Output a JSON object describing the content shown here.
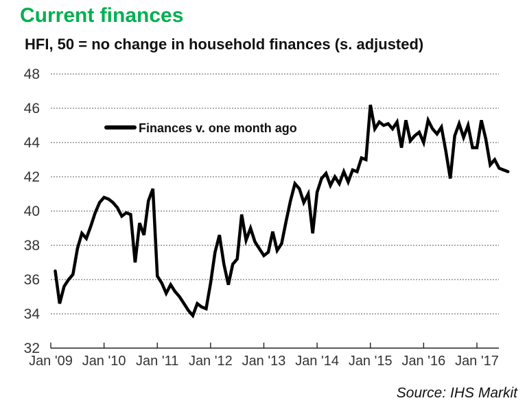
{
  "title": "Current finances",
  "subtitle": "HFI, 50 = no change in household finances (s. adjusted)",
  "source": "Source: IHS Markit",
  "colors": {
    "title_green": "#00B050",
    "line_black": "#000000",
    "axis_text": "#333333"
  },
  "chart_data": {
    "type": "line",
    "title": "Current finances",
    "subtitle": "HFI, 50 = no change in household finances (s. adjusted)",
    "legend_position": "upper-left-inside",
    "grid": "horizontal-dotted",
    "ylim": [
      32,
      48
    ],
    "y_ticks": [
      48,
      46,
      44,
      42,
      40,
      38,
      36,
      34,
      32
    ],
    "x_tick_labels": [
      "Jan '09",
      "Jan '10",
      "Jan '11",
      "Jan '12",
      "Jan '13",
      "Jan '14",
      "Jan '15",
      "Jan '16",
      "Jan '17"
    ],
    "series": [
      {
        "name": "Finances v. one month ago",
        "color": "#000000",
        "frequency": "monthly",
        "start_month": "2009-02",
        "end_month": "2017-08",
        "values": [
          36.5,
          34.6,
          35.6,
          36.0,
          36.3,
          37.8,
          38.7,
          38.4,
          39.1,
          39.9,
          40.5,
          40.8,
          40.7,
          40.5,
          40.2,
          39.7,
          39.9,
          39.8,
          37.0,
          39.3,
          38.6,
          40.6,
          41.3,
          36.2,
          35.8,
          35.2,
          35.7,
          35.3,
          35.0,
          34.6,
          34.2,
          33.9,
          34.6,
          34.4,
          34.3,
          35.8,
          37.6,
          38.6,
          36.9,
          35.7,
          36.9,
          37.2,
          39.8,
          38.3,
          39.0,
          38.2,
          37.8,
          37.4,
          37.6,
          38.8,
          37.7,
          38.1,
          39.4,
          40.6,
          41.6,
          41.3,
          40.5,
          41.0,
          38.7,
          41.1,
          41.9,
          42.2,
          41.5,
          42.0,
          41.6,
          42.3,
          41.7,
          42.4,
          42.3,
          43.1,
          43.0,
          46.2,
          44.8,
          45.2,
          45.0,
          45.1,
          44.8,
          45.2,
          43.7,
          45.3,
          44.1,
          44.4,
          44.6,
          44.0,
          45.3,
          44.8,
          44.5,
          44.9,
          43.5,
          41.9,
          44.4,
          45.1,
          44.3,
          45.0,
          43.7,
          43.7,
          45.3,
          44.2,
          42.7,
          43.0,
          42.5,
          42.4,
          42.3
        ]
      }
    ]
  }
}
